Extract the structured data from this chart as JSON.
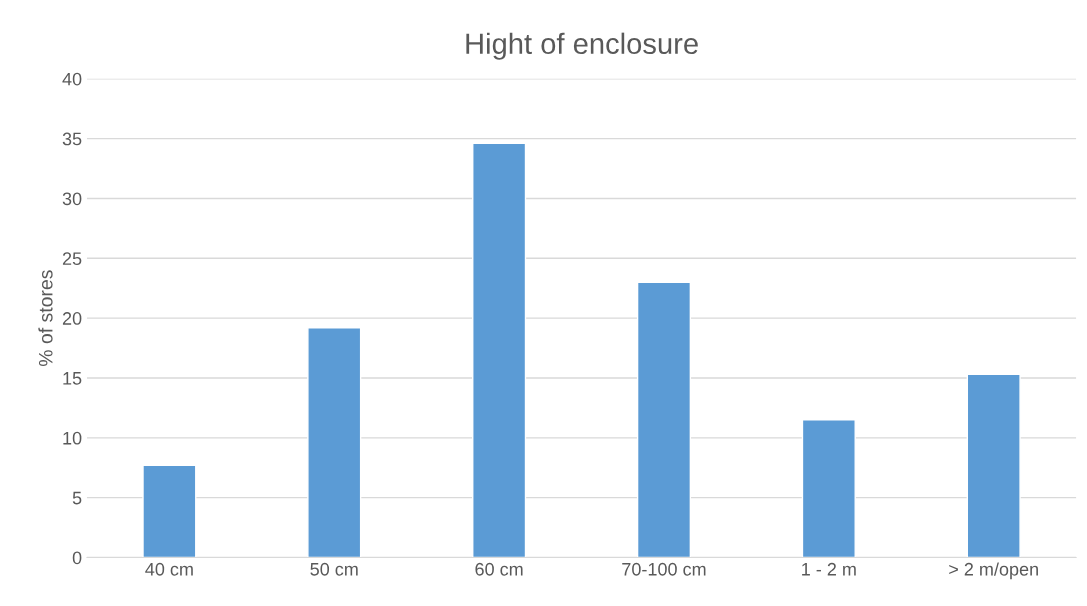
{
  "chart_data": {
    "type": "bar",
    "title": "Hight of enclosure",
    "ylabel": "% of stores",
    "categories": [
      "40 cm",
      "50 cm",
      "60 cm",
      "70-100 cm",
      "1 - 2 m",
      "> 2 m/open"
    ],
    "values": [
      7.7,
      19.2,
      34.6,
      23.0,
      11.5,
      15.3
    ],
    "color": "#5b9bd5",
    "ylim": [
      0,
      40
    ],
    "yticks": [
      0,
      5,
      10,
      15,
      20,
      25,
      30,
      35,
      40
    ],
    "grid": "y",
    "legend": false
  }
}
